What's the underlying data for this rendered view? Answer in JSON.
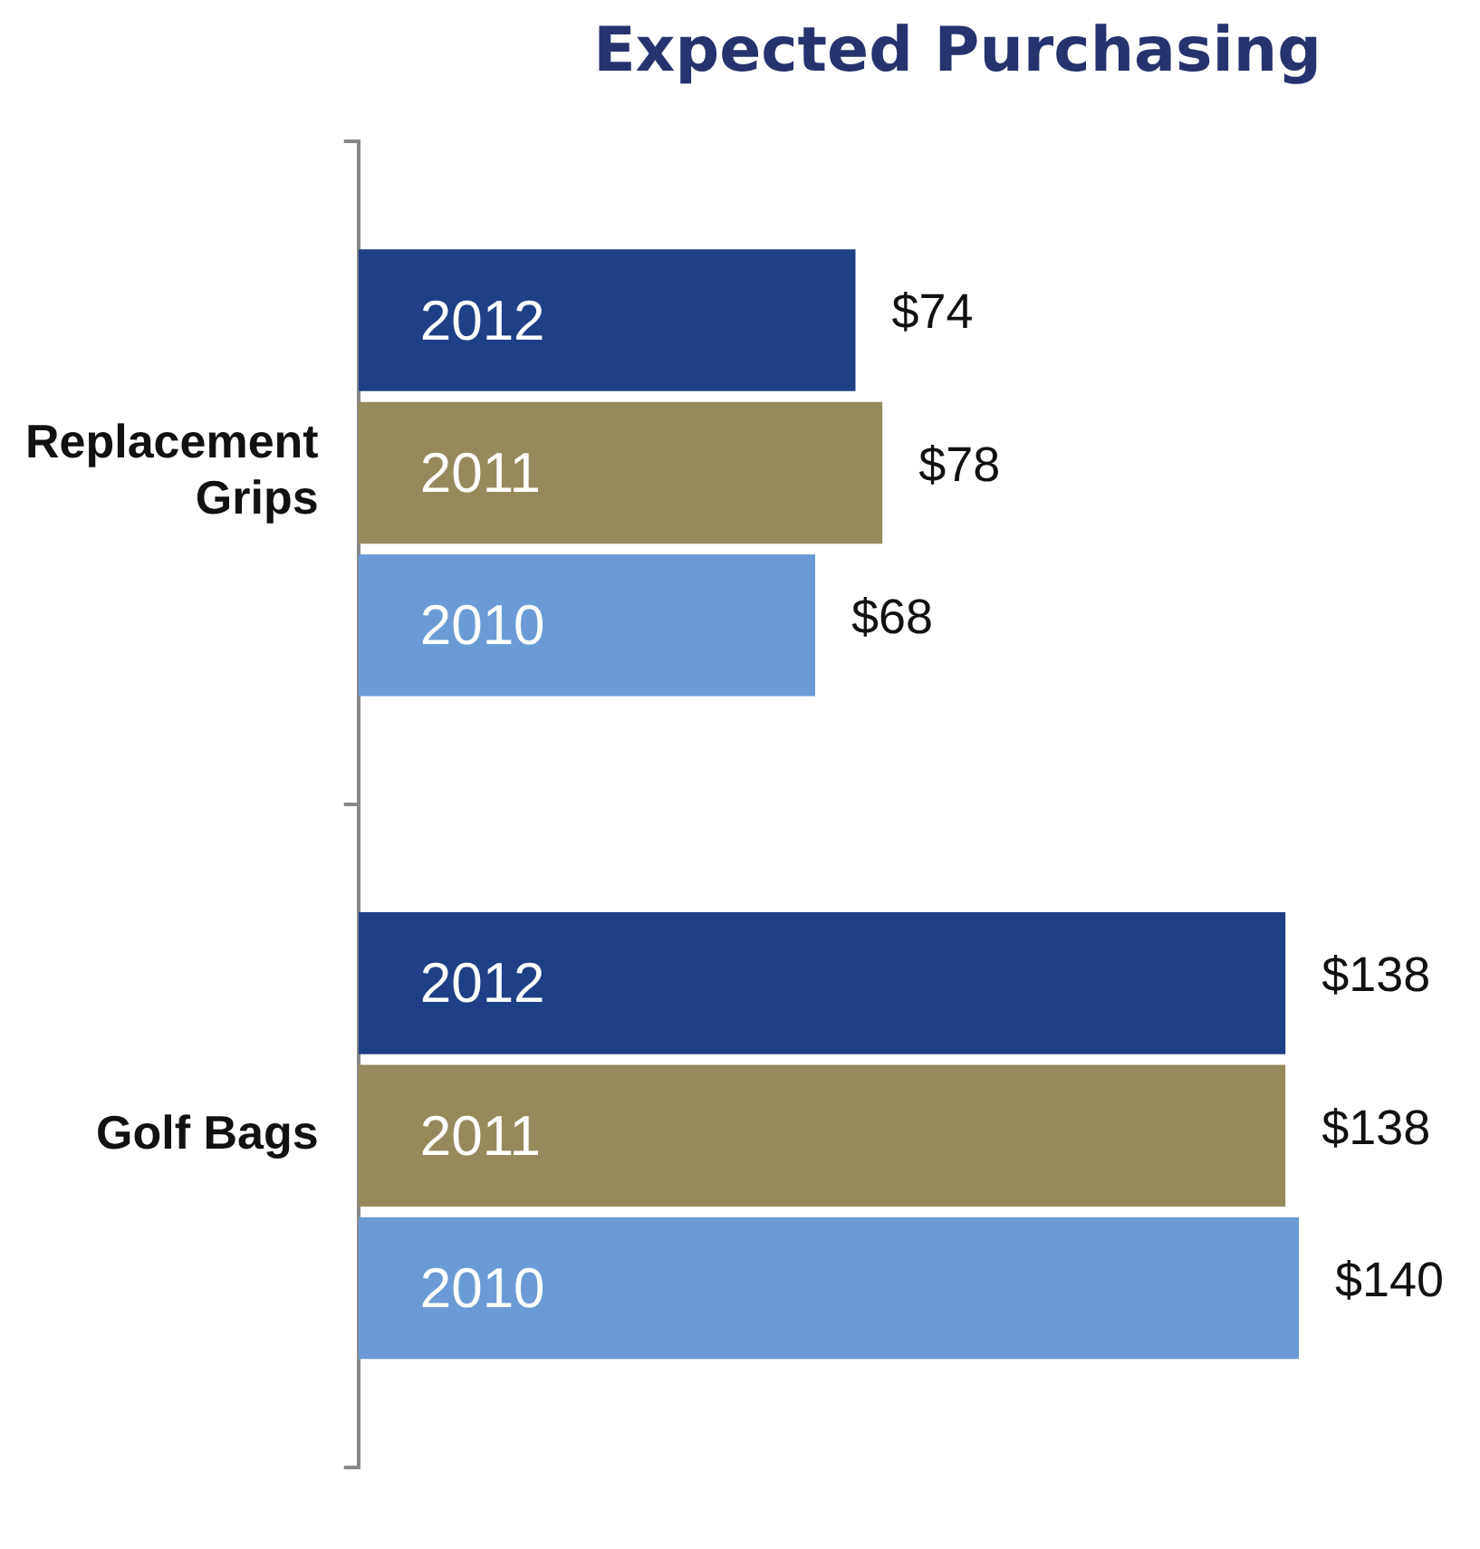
{
  "chart_data": {
    "type": "bar",
    "orientation": "horizontal",
    "title": "Expected Purchasing",
    "categories": [
      "Replacement Grips",
      "Golf Bags"
    ],
    "series": [
      {
        "name": "2012",
        "color": "#1f3f87",
        "values": [
          74,
          138
        ],
        "value_labels": [
          "$74",
          "$138"
        ]
      },
      {
        "name": "2011",
        "color": "#968a5c",
        "values": [
          78,
          138
        ],
        "value_labels": [
          "$78",
          "$138"
        ]
      },
      {
        "name": "2010",
        "color": "#6a9bd6",
        "values": [
          68,
          140
        ],
        "value_labels": [
          "$68",
          "$140"
        ]
      }
    ],
    "grid": false,
    "legend": false
  }
}
